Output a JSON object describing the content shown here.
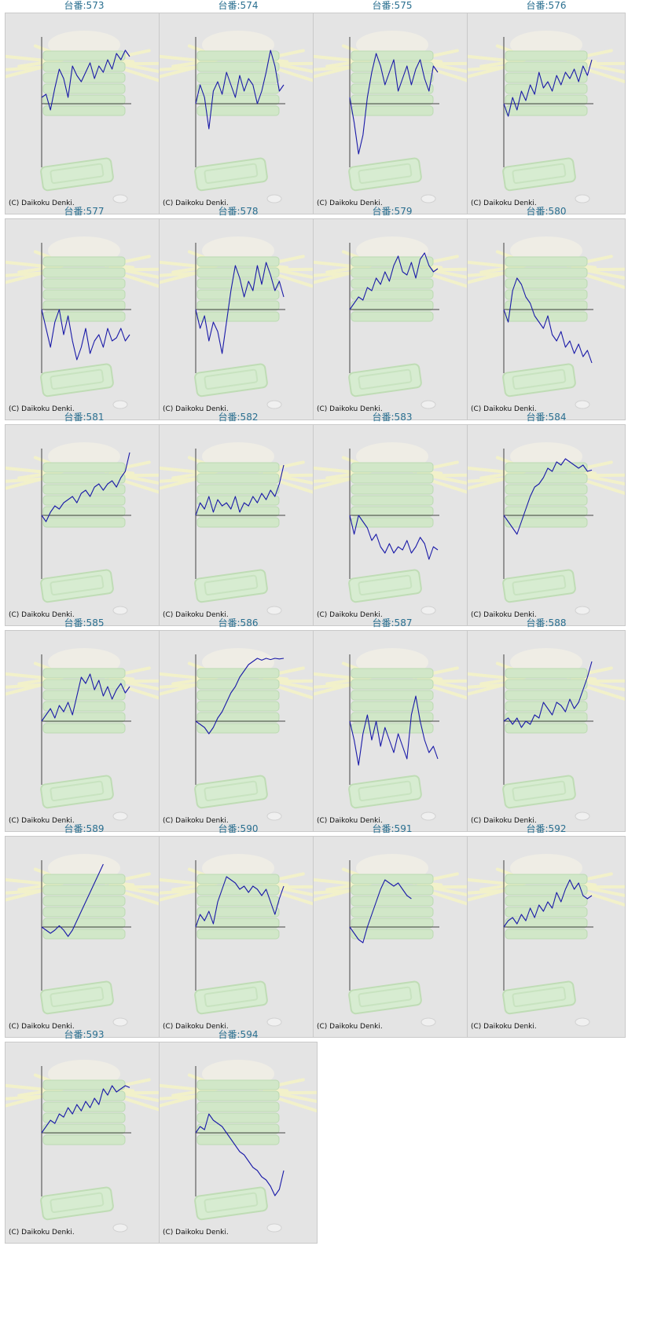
{
  "copyright": "(C) Daikoku Denki.",
  "colors": {
    "line": "#1a1aa8",
    "axis": "#444444",
    "title": "#2a6f90",
    "panel_bg": "#e4e4e4"
  },
  "machines": [
    {
      "label": "台番:573"
    },
    {
      "label": "台番:574"
    },
    {
      "label": "台番:575"
    },
    {
      "label": "台番:576"
    },
    {
      "label": "台番:577"
    },
    {
      "label": "台番:578"
    },
    {
      "label": "台番:579"
    },
    {
      "label": "台番:580"
    },
    {
      "label": "台番:581"
    },
    {
      "label": "台番:582"
    },
    {
      "label": "台番:583"
    },
    {
      "label": "台番:584"
    },
    {
      "label": "台番:585"
    },
    {
      "label": "台番:586"
    },
    {
      "label": "台番:587"
    },
    {
      "label": "台番:588"
    },
    {
      "label": "台番:589"
    },
    {
      "label": "台番:590"
    },
    {
      "label": "台番:591"
    },
    {
      "label": "台番:592"
    },
    {
      "label": "台番:593"
    },
    {
      "label": "台番:594"
    }
  ],
  "chart_data": [
    {
      "type": "line",
      "title": "台番:573",
      "x": [
        0,
        0.05,
        0.1,
        0.15,
        0.2,
        0.25,
        0.3,
        0.35,
        0.4,
        0.45,
        0.5,
        0.55,
        0.6,
        0.65,
        0.7,
        0.75,
        0.8,
        0.85,
        0.9,
        0.95,
        1.0
      ],
      "values": [
        0.1,
        0.15,
        -0.1,
        0.25,
        0.55,
        0.4,
        0.1,
        0.6,
        0.45,
        0.35,
        0.5,
        0.65,
        0.4,
        0.6,
        0.5,
        0.7,
        0.55,
        0.8,
        0.7,
        0.85,
        0.75
      ]
    },
    {
      "type": "line",
      "title": "台番:574",
      "x": [
        0,
        0.05,
        0.1,
        0.15,
        0.2,
        0.25,
        0.3,
        0.35,
        0.4,
        0.45,
        0.5,
        0.55,
        0.6,
        0.65,
        0.7,
        0.75,
        0.8,
        0.85,
        0.9,
        0.95,
        1.0
      ],
      "values": [
        0.0,
        0.3,
        0.1,
        -0.4,
        0.2,
        0.35,
        0.15,
        0.5,
        0.3,
        0.1,
        0.45,
        0.2,
        0.4,
        0.3,
        0.0,
        0.2,
        0.5,
        0.85,
        0.6,
        0.2,
        0.3
      ]
    },
    {
      "type": "line",
      "title": "台番:575",
      "x": [
        0,
        0.05,
        0.1,
        0.15,
        0.2,
        0.25,
        0.3,
        0.35,
        0.4,
        0.45,
        0.5,
        0.55,
        0.6,
        0.65,
        0.7,
        0.75,
        0.8,
        0.85,
        0.9,
        0.95,
        1.0
      ],
      "values": [
        0.1,
        -0.3,
        -0.8,
        -0.5,
        0.1,
        0.5,
        0.8,
        0.6,
        0.3,
        0.5,
        0.7,
        0.2,
        0.4,
        0.6,
        0.3,
        0.55,
        0.7,
        0.4,
        0.2,
        0.6,
        0.5
      ]
    },
    {
      "type": "line",
      "title": "台番:576",
      "x": [
        0,
        0.05,
        0.1,
        0.15,
        0.2,
        0.25,
        0.3,
        0.35,
        0.4,
        0.45,
        0.5,
        0.55,
        0.6,
        0.65,
        0.7,
        0.75,
        0.8,
        0.85,
        0.9,
        0.95,
        1.0
      ],
      "values": [
        0.0,
        -0.2,
        0.1,
        -0.1,
        0.2,
        0.05,
        0.3,
        0.15,
        0.5,
        0.25,
        0.35,
        0.2,
        0.45,
        0.3,
        0.5,
        0.4,
        0.55,
        0.35,
        0.6,
        0.45,
        0.7
      ]
    },
    {
      "type": "line",
      "title": "台番:577",
      "x": [
        0,
        0.05,
        0.1,
        0.15,
        0.2,
        0.25,
        0.3,
        0.35,
        0.4,
        0.45,
        0.5,
        0.55,
        0.6,
        0.65,
        0.7,
        0.75,
        0.8,
        0.85,
        0.9,
        0.95,
        1.0
      ],
      "values": [
        0.0,
        -0.3,
        -0.6,
        -0.2,
        0.0,
        -0.4,
        -0.1,
        -0.5,
        -0.8,
        -0.6,
        -0.3,
        -0.7,
        -0.5,
        -0.4,
        -0.6,
        -0.3,
        -0.5,
        -0.45,
        -0.3,
        -0.5,
        -0.4
      ]
    },
    {
      "type": "line",
      "title": "台番:578",
      "x": [
        0,
        0.05,
        0.1,
        0.15,
        0.2,
        0.25,
        0.3,
        0.35,
        0.4,
        0.45,
        0.5,
        0.55,
        0.6,
        0.65,
        0.7,
        0.75,
        0.8,
        0.85,
        0.9,
        0.95,
        1.0
      ],
      "values": [
        0.0,
        -0.3,
        -0.1,
        -0.5,
        -0.2,
        -0.35,
        -0.7,
        -0.2,
        0.3,
        0.7,
        0.5,
        0.2,
        0.45,
        0.3,
        0.7,
        0.4,
        0.75,
        0.55,
        0.3,
        0.45,
        0.2
      ]
    },
    {
      "type": "line",
      "title": "台番:579",
      "x": [
        0,
        0.05,
        0.1,
        0.15,
        0.2,
        0.25,
        0.3,
        0.35,
        0.4,
        0.45,
        0.5,
        0.55,
        0.6,
        0.65,
        0.7,
        0.75,
        0.8,
        0.85,
        0.9,
        0.95,
        1.0
      ],
      "values": [
        0.0,
        0.1,
        0.2,
        0.15,
        0.35,
        0.3,
        0.5,
        0.4,
        0.6,
        0.45,
        0.7,
        0.85,
        0.6,
        0.55,
        0.75,
        0.5,
        0.8,
        0.9,
        0.7,
        0.6,
        0.65
      ]
    },
    {
      "type": "line",
      "title": "台番:580",
      "x": [
        0,
        0.05,
        0.1,
        0.15,
        0.2,
        0.25,
        0.3,
        0.35,
        0.4,
        0.45,
        0.5,
        0.55,
        0.6,
        0.65,
        0.7,
        0.75,
        0.8,
        0.85,
        0.9,
        0.95,
        1.0
      ],
      "values": [
        0.0,
        -0.2,
        0.3,
        0.5,
        0.4,
        0.2,
        0.1,
        -0.1,
        -0.2,
        -0.3,
        -0.1,
        -0.4,
        -0.5,
        -0.35,
        -0.6,
        -0.5,
        -0.7,
        -0.55,
        -0.75,
        -0.65,
        -0.85
      ]
    },
    {
      "type": "line",
      "title": "台番:581",
      "x": [
        0,
        0.05,
        0.1,
        0.15,
        0.2,
        0.25,
        0.3,
        0.35,
        0.4,
        0.45,
        0.5,
        0.55,
        0.6,
        0.65,
        0.7,
        0.75,
        0.8,
        0.85,
        0.9,
        0.95,
        1.0
      ],
      "values": [
        0.0,
        -0.1,
        0.05,
        0.15,
        0.1,
        0.2,
        0.25,
        0.3,
        0.2,
        0.35,
        0.4,
        0.3,
        0.45,
        0.5,
        0.4,
        0.5,
        0.55,
        0.45,
        0.6,
        0.7,
        1.0
      ]
    },
    {
      "type": "line",
      "title": "台番:582",
      "x": [
        0,
        0.05,
        0.1,
        0.15,
        0.2,
        0.25,
        0.3,
        0.35,
        0.4,
        0.45,
        0.5,
        0.55,
        0.6,
        0.65,
        0.7,
        0.75,
        0.8,
        0.85,
        0.9,
        0.95,
        1.0
      ],
      "values": [
        0.0,
        0.2,
        0.1,
        0.3,
        0.05,
        0.25,
        0.15,
        0.2,
        0.1,
        0.3,
        0.05,
        0.2,
        0.15,
        0.3,
        0.2,
        0.35,
        0.25,
        0.4,
        0.3,
        0.5,
        0.8
      ]
    },
    {
      "type": "line",
      "title": "台番:583",
      "x": [
        0,
        0.05,
        0.1,
        0.15,
        0.2,
        0.25,
        0.3,
        0.35,
        0.4,
        0.45,
        0.5,
        0.55,
        0.6,
        0.65,
        0.7,
        0.75,
        0.8,
        0.85,
        0.9,
        0.95,
        1.0
      ],
      "values": [
        0.0,
        -0.3,
        0.0,
        -0.1,
        -0.2,
        -0.4,
        -0.3,
        -0.5,
        -0.6,
        -0.45,
        -0.6,
        -0.5,
        -0.55,
        -0.4,
        -0.6,
        -0.5,
        -0.35,
        -0.45,
        -0.7,
        -0.5,
        -0.55
      ]
    },
    {
      "type": "line",
      "title": "台番:584",
      "x": [
        0,
        0.05,
        0.1,
        0.15,
        0.2,
        0.25,
        0.3,
        0.35,
        0.4,
        0.45,
        0.5,
        0.55,
        0.6,
        0.65,
        0.7,
        0.75,
        0.8,
        0.85,
        0.9,
        0.95,
        1.0
      ],
      "values": [
        0.0,
        -0.1,
        -0.2,
        -0.3,
        -0.1,
        0.1,
        0.3,
        0.45,
        0.5,
        0.6,
        0.75,
        0.7,
        0.85,
        0.8,
        0.9,
        0.85,
        0.8,
        0.75,
        0.8,
        0.7,
        0.72
      ]
    },
    {
      "type": "line",
      "title": "台番:585",
      "x": [
        0,
        0.05,
        0.1,
        0.15,
        0.2,
        0.25,
        0.3,
        0.35,
        0.4,
        0.45,
        0.5,
        0.55,
        0.6,
        0.65,
        0.7,
        0.75,
        0.8,
        0.85,
        0.9,
        0.95,
        1.0
      ],
      "values": [
        0.0,
        0.1,
        0.2,
        0.05,
        0.25,
        0.15,
        0.3,
        0.1,
        0.4,
        0.7,
        0.6,
        0.75,
        0.5,
        0.65,
        0.4,
        0.55,
        0.35,
        0.5,
        0.6,
        0.45,
        0.55
      ]
    },
    {
      "type": "line",
      "title": "台番:586",
      "x": [
        0,
        0.05,
        0.1,
        0.15,
        0.2,
        0.25,
        0.3,
        0.35,
        0.4,
        0.45,
        0.5,
        0.55,
        0.6,
        0.65,
        0.7,
        0.75,
        0.8,
        0.85,
        0.9,
        0.95,
        1.0
      ],
      "values": [
        0.0,
        -0.05,
        -0.1,
        -0.2,
        -0.1,
        0.05,
        0.15,
        0.3,
        0.45,
        0.55,
        0.7,
        0.8,
        0.9,
        0.95,
        1.0,
        0.97,
        1.0,
        0.98,
        1.0,
        0.99,
        1.0
      ]
    },
    {
      "type": "line",
      "title": "台番:587",
      "x": [
        0,
        0.05,
        0.1,
        0.15,
        0.2,
        0.25,
        0.3,
        0.35,
        0.4,
        0.45,
        0.5,
        0.55,
        0.6,
        0.65,
        0.7,
        0.75,
        0.8,
        0.85,
        0.9,
        0.95,
        1.0
      ],
      "values": [
        0.0,
        -0.3,
        -0.7,
        -0.2,
        0.1,
        -0.3,
        0.0,
        -0.4,
        -0.1,
        -0.3,
        -0.5,
        -0.2,
        -0.4,
        -0.6,
        0.1,
        0.4,
        0.0,
        -0.3,
        -0.5,
        -0.4,
        -0.6
      ]
    },
    {
      "type": "line",
      "title": "台番:588",
      "x": [
        0,
        0.05,
        0.1,
        0.15,
        0.2,
        0.25,
        0.3,
        0.35,
        0.4,
        0.45,
        0.5,
        0.55,
        0.6,
        0.65,
        0.7,
        0.75,
        0.8,
        0.85,
        0.9,
        0.95,
        1.0
      ],
      "values": [
        0.0,
        0.05,
        -0.05,
        0.05,
        -0.1,
        0.0,
        -0.05,
        0.1,
        0.05,
        0.3,
        0.2,
        0.1,
        0.3,
        0.25,
        0.15,
        0.35,
        0.2,
        0.3,
        0.5,
        0.7,
        0.95
      ]
    },
    {
      "type": "line",
      "title": "台番:589",
      "x": [
        0,
        0.05,
        0.1,
        0.15,
        0.2,
        0.25,
        0.3,
        0.35,
        0.4,
        0.45,
        0.5,
        0.55,
        0.6,
        0.65,
        0.7,
        0.75,
        0.8,
        0.85,
        0.9,
        0.95,
        1.0
      ],
      "values": [
        0.0,
        -0.05,
        -0.1,
        -0.05,
        0.02,
        -0.05,
        -0.15,
        -0.05,
        0.1,
        0.25,
        0.4,
        0.55,
        0.7,
        0.85,
        1.0,
        null,
        null,
        null,
        null,
        null,
        null
      ]
    },
    {
      "type": "line",
      "title": "台番:590",
      "x": [
        0,
        0.05,
        0.1,
        0.15,
        0.2,
        0.25,
        0.3,
        0.35,
        0.4,
        0.45,
        0.5,
        0.55,
        0.6,
        0.65,
        0.7,
        0.75,
        0.8,
        0.85,
        0.9,
        0.95,
        1.0
      ],
      "values": [
        0.0,
        0.2,
        0.1,
        0.25,
        0.05,
        0.4,
        0.6,
        0.8,
        0.75,
        0.7,
        0.6,
        0.65,
        0.55,
        0.65,
        0.6,
        0.5,
        0.6,
        0.4,
        0.2,
        0.45,
        0.65
      ]
    },
    {
      "type": "line",
      "title": "台番:591",
      "x": [
        0,
        0.05,
        0.1,
        0.15,
        0.2,
        0.25,
        0.3,
        0.35,
        0.4,
        0.45,
        0.5,
        0.55,
        0.6,
        0.65,
        0.7,
        0.75,
        0.8,
        0.85,
        0.9,
        0.95,
        1.0
      ],
      "values": [
        0.0,
        -0.1,
        -0.2,
        -0.25,
        0.0,
        0.2,
        0.4,
        0.6,
        0.75,
        0.7,
        0.65,
        0.7,
        0.6,
        0.5,
        0.45,
        null,
        null,
        null,
        null,
        null,
        null
      ]
    },
    {
      "type": "line",
      "title": "台番:592",
      "x": [
        0,
        0.05,
        0.1,
        0.15,
        0.2,
        0.25,
        0.3,
        0.35,
        0.4,
        0.45,
        0.5,
        0.55,
        0.6,
        0.65,
        0.7,
        0.75,
        0.8,
        0.85,
        0.9,
        0.95,
        1.0
      ],
      "values": [
        0.0,
        0.1,
        0.15,
        0.05,
        0.2,
        0.1,
        0.3,
        0.15,
        0.35,
        0.25,
        0.4,
        0.3,
        0.55,
        0.4,
        0.6,
        0.75,
        0.6,
        0.7,
        0.5,
        0.45,
        0.5
      ]
    },
    {
      "type": "line",
      "title": "台番:593",
      "x": [
        0,
        0.05,
        0.1,
        0.15,
        0.2,
        0.25,
        0.3,
        0.35,
        0.4,
        0.45,
        0.5,
        0.55,
        0.6,
        0.65,
        0.7,
        0.75,
        0.8,
        0.85,
        0.9,
        0.95,
        1.0
      ],
      "values": [
        0.0,
        0.1,
        0.2,
        0.15,
        0.3,
        0.25,
        0.4,
        0.3,
        0.45,
        0.35,
        0.5,
        0.4,
        0.55,
        0.45,
        0.7,
        0.6,
        0.75,
        0.65,
        0.7,
        0.75,
        0.72
      ]
    },
    {
      "type": "line",
      "title": "台番:594",
      "x": [
        0,
        0.05,
        0.1,
        0.15,
        0.2,
        0.25,
        0.3,
        0.35,
        0.4,
        0.45,
        0.5,
        0.55,
        0.6,
        0.65,
        0.7,
        0.75,
        0.8,
        0.85,
        0.9,
        0.95,
        1.0
      ],
      "values": [
        0.0,
        0.1,
        0.05,
        0.3,
        0.2,
        0.15,
        0.1,
        0.0,
        -0.1,
        -0.2,
        -0.3,
        -0.35,
        -0.45,
        -0.55,
        -0.6,
        -0.7,
        -0.75,
        -0.85,
        -1.0,
        -0.9,
        -0.6
      ]
    }
  ]
}
